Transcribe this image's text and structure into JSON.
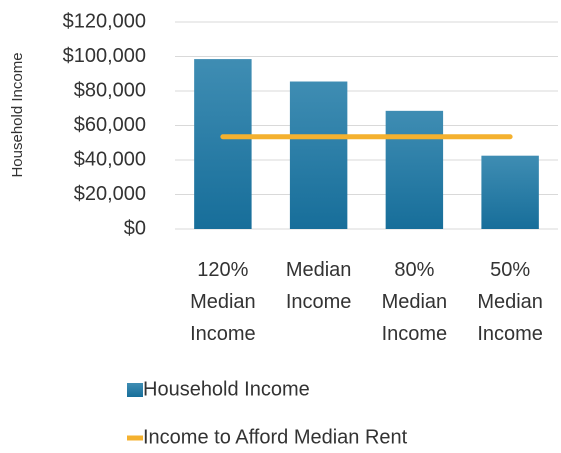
{
  "chart_data": {
    "type": "bar",
    "y_axis_label": "Household Income",
    "categories": [
      "120% Median Income",
      "Median Income",
      "80% Median Income",
      "50% Median Income"
    ],
    "series": [
      {
        "name": "Household Income",
        "type": "bar",
        "color": "#1f74a0",
        "values": [
          98500,
          85500,
          68500,
          42500
        ]
      },
      {
        "name": "Income to Afford Median Rent",
        "type": "line",
        "color": "#f4b12f",
        "values": [
          53500,
          53500,
          53500,
          53500
        ]
      }
    ],
    "ylim": [
      0,
      120000
    ],
    "yticks": [
      {
        "value": 0,
        "label": "$0"
      },
      {
        "value": 20000,
        "label": "$20,000"
      },
      {
        "value": 40000,
        "label": "$40,000"
      },
      {
        "value": 60000,
        "label": "$60,000"
      },
      {
        "value": 80000,
        "label": "$80,000"
      },
      {
        "value": 100000,
        "label": "$100,000"
      },
      {
        "value": 120000,
        "label": "$120,000"
      }
    ],
    "grid": true,
    "legend": "bottom"
  }
}
